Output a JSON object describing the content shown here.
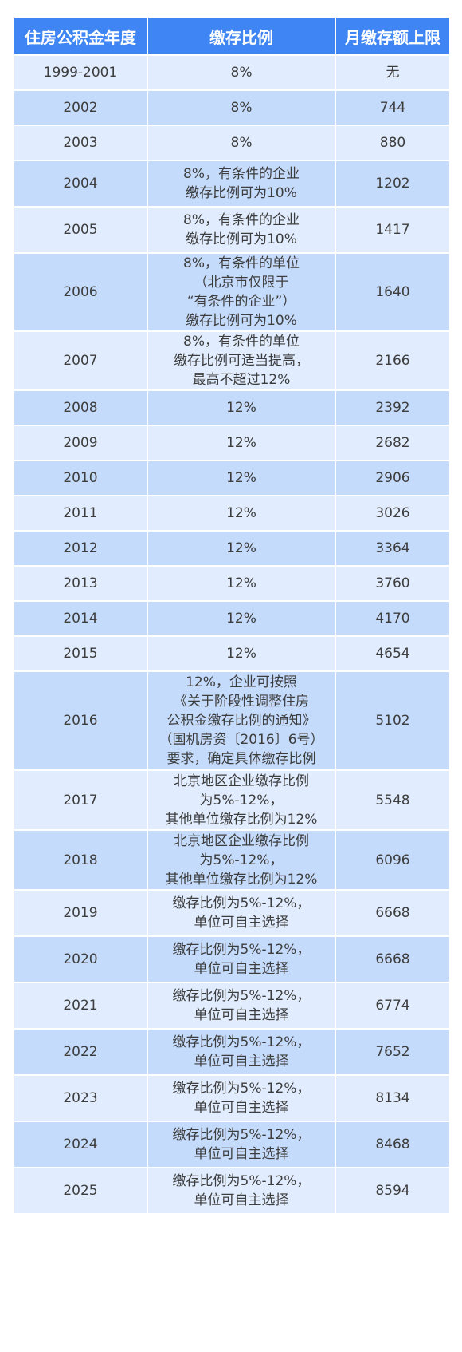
{
  "table": {
    "headers": [
      "住房公积金年度",
      "缴存比例",
      "月缴存额上限"
    ],
    "rows": [
      {
        "year": "1999-2001",
        "ratio": "8%",
        "cap": "无"
      },
      {
        "year": "2002",
        "ratio": "8%",
        "cap": "744"
      },
      {
        "year": "2003",
        "ratio": "8%",
        "cap": "880"
      },
      {
        "year": "2004",
        "ratio": "8%，有条件的企业\n缴存比例可为10%",
        "cap": "1202"
      },
      {
        "year": "2005",
        "ratio": "8%，有条件的企业\n缴存比例可为10%",
        "cap": "1417"
      },
      {
        "year": "2006",
        "ratio": "8%，有条件的单位\n（北京市仅限于\n“有条件的企业”）\n缴存比例可为10%",
        "cap": "1640"
      },
      {
        "year": "2007",
        "ratio": "8%，有条件的单位\n缴存比例可适当提高，\n最高不超过12%",
        "cap": "2166"
      },
      {
        "year": "2008",
        "ratio": "12%",
        "cap": "2392"
      },
      {
        "year": "2009",
        "ratio": "12%",
        "cap": "2682"
      },
      {
        "year": "2010",
        "ratio": "12%",
        "cap": "2906"
      },
      {
        "year": "2011",
        "ratio": "12%",
        "cap": "3026"
      },
      {
        "year": "2012",
        "ratio": "12%",
        "cap": "3364"
      },
      {
        "year": "2013",
        "ratio": "12%",
        "cap": "3760"
      },
      {
        "year": "2014",
        "ratio": "12%",
        "cap": "4170"
      },
      {
        "year": "2015",
        "ratio": "12%",
        "cap": "4654"
      },
      {
        "year": "2016",
        "ratio": "12%，企业可按照\n《关于阶段性调整住房\n公积金缴存比例的通知》\n（国机房资〔2016〕6号）\n要求，确定具体缴存比例",
        "cap": "5102"
      },
      {
        "year": "2017",
        "ratio": "北京地区企业缴存比例\n为5%-12%，\n其他单位缴存比例为12%",
        "cap": "5548"
      },
      {
        "year": "2018",
        "ratio": "北京地区企业缴存比例\n为5%-12%，\n其他单位缴存比例为12%",
        "cap": "6096"
      },
      {
        "year": "2019",
        "ratio": "缴存比例为5%-12%，\n单位可自主选择",
        "cap": "6668"
      },
      {
        "year": "2020",
        "ratio": "缴存比例为5%-12%，\n单位可自主选择",
        "cap": "6668"
      },
      {
        "year": "2021",
        "ratio": "缴存比例为5%-12%，\n单位可自主选择",
        "cap": "6774"
      },
      {
        "year": "2022",
        "ratio": "缴存比例为5%-12%，\n单位可自主选择",
        "cap": "7652"
      },
      {
        "year": "2023",
        "ratio": "缴存比例为5%-12%，\n单位可自主选择",
        "cap": "8134"
      },
      {
        "year": "2024",
        "ratio": "缴存比例为5%-12%，\n单位可自主选择",
        "cap": "8468"
      },
      {
        "year": "2025",
        "ratio": "缴存比例为5%-12%，\n单位可自主选择",
        "cap": "8594"
      }
    ]
  },
  "colors": {
    "header": "#3f86f4",
    "row_light": "#e1edfe",
    "row_dark": "#c5dbfb"
  }
}
